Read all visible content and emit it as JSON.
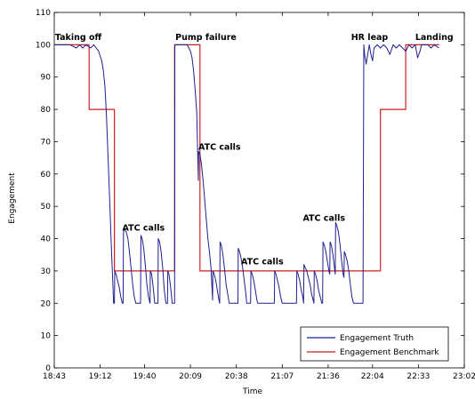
{
  "chart_data": {
    "type": "line",
    "xlabel": "Time",
    "ylabel": "Engagement",
    "xlim_minutes": [
      0,
      259
    ],
    "ylim": [
      0,
      110
    ],
    "x_ticks": [
      {
        "minutes": 0,
        "label": "18:43"
      },
      {
        "minutes": 29,
        "label": "19:12"
      },
      {
        "minutes": 57,
        "label": "19:40"
      },
      {
        "minutes": 86,
        "label": "20:09"
      },
      {
        "minutes": 115,
        "label": "20:38"
      },
      {
        "minutes": 144,
        "label": "21:07"
      },
      {
        "minutes": 173,
        "label": "21:36"
      },
      {
        "minutes": 201,
        "label": "22:04"
      },
      {
        "minutes": 230,
        "label": "22:33"
      },
      {
        "minutes": 259,
        "label": "23:02"
      }
    ],
    "y_ticks": [
      0,
      10,
      20,
      30,
      40,
      50,
      60,
      70,
      80,
      90,
      100,
      110
    ],
    "grid": false,
    "legend_position": "bottom-right",
    "series": [
      {
        "name": "Engagement Truth",
        "color": "#1f1f8f",
        "points": [
          [
            0,
            100
          ],
          [
            10,
            100
          ],
          [
            14,
            99
          ],
          [
            16,
            100
          ],
          [
            18,
            99
          ],
          [
            20,
            100
          ],
          [
            23,
            99
          ],
          [
            25,
            100
          ],
          [
            28,
            98
          ],
          [
            30,
            95
          ],
          [
            31,
            92
          ],
          [
            32,
            87
          ],
          [
            33,
            78
          ],
          [
            34,
            65
          ],
          [
            35,
            52
          ],
          [
            36,
            38
          ],
          [
            37,
            26
          ],
          [
            37.5,
            20
          ],
          [
            38,
            20
          ],
          [
            38.2,
            30
          ],
          [
            39,
            29
          ],
          [
            40,
            27
          ],
          [
            41,
            25
          ],
          [
            42,
            22
          ],
          [
            43,
            20
          ],
          [
            43.5,
            20
          ],
          [
            43.7,
            42
          ],
          [
            44.5,
            43
          ],
          [
            45.5,
            42
          ],
          [
            46.5,
            40
          ],
          [
            47.5,
            36
          ],
          [
            48.5,
            31
          ],
          [
            49.5,
            26
          ],
          [
            50.5,
            22
          ],
          [
            51.5,
            20
          ],
          [
            54.5,
            20
          ],
          [
            54.7,
            41
          ],
          [
            55.5,
            40
          ],
          [
            56.5,
            37
          ],
          [
            57.5,
            32
          ],
          [
            58.5,
            26
          ],
          [
            59.5,
            22
          ],
          [
            60.5,
            20
          ],
          [
            60.7,
            30
          ],
          [
            61.5,
            29
          ],
          [
            62.5,
            25
          ],
          [
            63.5,
            20
          ],
          [
            65.5,
            20
          ],
          [
            65.7,
            40
          ],
          [
            66.5,
            39
          ],
          [
            67.5,
            36
          ],
          [
            68.5,
            31
          ],
          [
            69.5,
            24
          ],
          [
            70.5,
            20
          ],
          [
            71.5,
            20
          ],
          [
            71.7,
            30
          ],
          [
            72.5,
            29
          ],
          [
            73.5,
            25
          ],
          [
            74.5,
            20
          ],
          [
            76,
            20
          ],
          [
            76.2,
            100
          ],
          [
            82,
            100
          ],
          [
            84,
            100
          ],
          [
            85,
            99
          ],
          [
            86,
            98
          ],
          [
            87,
            96
          ],
          [
            88,
            92
          ],
          [
            89,
            86
          ],
          [
            90,
            79
          ],
          [
            90.5,
            68
          ],
          [
            91,
            58
          ],
          [
            91.2,
            67
          ],
          [
            92,
            66
          ],
          [
            93,
            63
          ],
          [
            94,
            58
          ],
          [
            95,
            52
          ],
          [
            96,
            46
          ],
          [
            97,
            40
          ],
          [
            98,
            36
          ],
          [
            99,
            31
          ],
          [
            99.5,
            26
          ],
          [
            100,
            21
          ],
          [
            100.2,
            30
          ],
          [
            101,
            29
          ],
          [
            102,
            27
          ],
          [
            103,
            24
          ],
          [
            104,
            21
          ],
          [
            104.5,
            20
          ],
          [
            104.7,
            39
          ],
          [
            105.5,
            38
          ],
          [
            106.5,
            35
          ],
          [
            107.5,
            31
          ],
          [
            108.5,
            26
          ],
          [
            109.5,
            23
          ],
          [
            110.5,
            20
          ],
          [
            116,
            20
          ],
          [
            116.2,
            37
          ],
          [
            117,
            36
          ],
          [
            118,
            34
          ],
          [
            119,
            31
          ],
          [
            120,
            27
          ],
          [
            121,
            23
          ],
          [
            121.5,
            20
          ],
          [
            124,
            20
          ],
          [
            124.2,
            30
          ],
          [
            125,
            29
          ],
          [
            126,
            27
          ],
          [
            127,
            24
          ],
          [
            128,
            21
          ],
          [
            128.5,
            20
          ],
          [
            139,
            20
          ],
          [
            139.2,
            30
          ],
          [
            140,
            29
          ],
          [
            141,
            27
          ],
          [
            142,
            25
          ],
          [
            143,
            22
          ],
          [
            144,
            20
          ],
          [
            153,
            20
          ],
          [
            153.2,
            30
          ],
          [
            154,
            29
          ],
          [
            155,
            27
          ],
          [
            156,
            24
          ],
          [
            157,
            22
          ],
          [
            157.5,
            20
          ],
          [
            157.7,
            32
          ],
          [
            158.5,
            31
          ],
          [
            159.5,
            30
          ],
          [
            160.5,
            28
          ],
          [
            161.5,
            26
          ],
          [
            162.5,
            23
          ],
          [
            163.5,
            21
          ],
          [
            164,
            20
          ],
          [
            164.2,
            30
          ],
          [
            165,
            29
          ],
          [
            166,
            27
          ],
          [
            167,
            24
          ],
          [
            168,
            22
          ],
          [
            169,
            20
          ],
          [
            169.5,
            20
          ],
          [
            169.7,
            39
          ],
          [
            170.5,
            38
          ],
          [
            171.5,
            36
          ],
          [
            172.5,
            33
          ],
          [
            173.5,
            30
          ],
          [
            174,
            29
          ],
          [
            174.2,
            39
          ],
          [
            175,
            38
          ],
          [
            176,
            35
          ],
          [
            177,
            31
          ],
          [
            177.5,
            29
          ],
          [
            177.7,
            45
          ],
          [
            178.5,
            44
          ],
          [
            179.5,
            42
          ],
          [
            180.5,
            38
          ],
          [
            181.5,
            33
          ],
          [
            182.5,
            29
          ],
          [
            183,
            28
          ],
          [
            183.2,
            36
          ],
          [
            184,
            35
          ],
          [
            185,
            33
          ],
          [
            186,
            30
          ],
          [
            187,
            26
          ],
          [
            188,
            22
          ],
          [
            189,
            20
          ],
          [
            195,
            20
          ],
          [
            195.5,
            100
          ],
          [
            196,
            97
          ],
          [
            197,
            94
          ],
          [
            198,
            97
          ],
          [
            199,
            100
          ],
          [
            200,
            97
          ],
          [
            201,
            95
          ],
          [
            202,
            99
          ],
          [
            204,
            100
          ],
          [
            206,
            99
          ],
          [
            208,
            100
          ],
          [
            210,
            99
          ],
          [
            212,
            97
          ],
          [
            214,
            100
          ],
          [
            216,
            99
          ],
          [
            218,
            100
          ],
          [
            220,
            99
          ],
          [
            222,
            98
          ],
          [
            224,
            100
          ],
          [
            226,
            99
          ],
          [
            228,
            100
          ],
          [
            229.5,
            96
          ],
          [
            231,
            98
          ],
          [
            232,
            100
          ],
          [
            236,
            100
          ],
          [
            238,
            99
          ],
          [
            240,
            100
          ],
          [
            243,
            99
          ]
        ]
      },
      {
        "name": "Engagement Benchmark",
        "color": "#cc1f1f",
        "points": [
          [
            0,
            100
          ],
          [
            22,
            100
          ],
          [
            22,
            80
          ],
          [
            38,
            80
          ],
          [
            38,
            30
          ],
          [
            76,
            30
          ],
          [
            76,
            100
          ],
          [
            92,
            100
          ],
          [
            92,
            30
          ],
          [
            206,
            30
          ],
          [
            206,
            80
          ],
          [
            222,
            80
          ],
          [
            222,
            100
          ],
          [
            243,
            100
          ]
        ]
      }
    ],
    "annotations": [
      {
        "text": "Taking off",
        "minutes": 0.5,
        "y": 101.5
      },
      {
        "text": "Pump failure",
        "minutes": 76.5,
        "y": 101.5
      },
      {
        "text": "ATC calls",
        "minutes": 91,
        "y": 67.5
      },
      {
        "text": "ATC calls",
        "minutes": 43,
        "y": 42.5
      },
      {
        "text": "ATC calls",
        "minutes": 118,
        "y": 32
      },
      {
        "text": "ATC calls",
        "minutes": 157,
        "y": 45.5
      },
      {
        "text": "HR leap",
        "minutes": 187.5,
        "y": 101.5
      },
      {
        "text": "Landing",
        "minutes": 228,
        "y": 101.5
      }
    ]
  }
}
